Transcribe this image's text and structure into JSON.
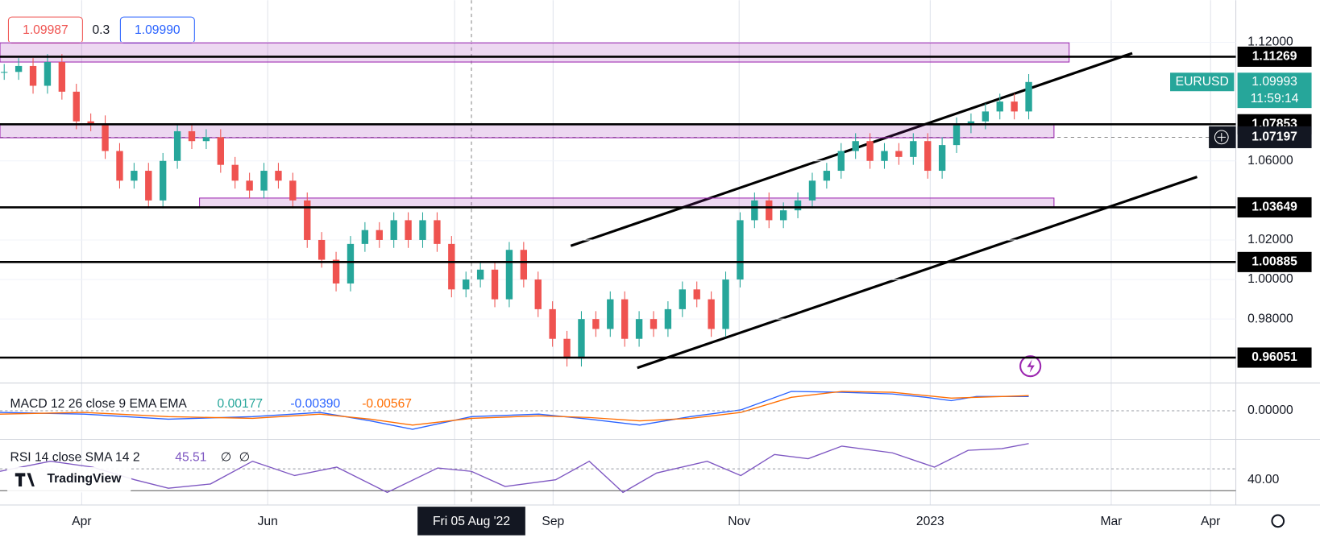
{
  "header": {
    "bid": "1.09987",
    "spread": "0.3",
    "ask": "1.09990"
  },
  "price_axis": {
    "ylim": [
      0.94766,
      1.14128
    ],
    "yticks": [
      {
        "value": 1.12,
        "label": "1.12000"
      },
      {
        "value": 1.06,
        "label": "1.06000"
      },
      {
        "value": 1.02,
        "label": "1.02000"
      },
      {
        "value": 1.0,
        "label": "1.00000"
      },
      {
        "value": 0.98,
        "label": "0.98000"
      }
    ]
  },
  "levels": [
    1.11269,
    1.07853,
    1.03649,
    1.00885,
    0.96051
  ],
  "zones": [
    [
      1.1197,
      1.11
    ],
    [
      1.0785,
      1.0717
    ],
    [
      1.0412,
      1.0365
    ]
  ],
  "symbol": {
    "name": "EURUSD",
    "price": 1.09993,
    "countdown": "11:59:14"
  },
  "crosshair_price": 1.07197,
  "closes": [
    1.105,
    1.108,
    1.098,
    1.11,
    1.095,
    1.08,
    1.079,
    1.065,
    1.05,
    1.055,
    1.04,
    1.06,
    1.075,
    1.07,
    1.072,
    1.058,
    1.05,
    1.045,
    1.055,
    1.05,
    1.04,
    1.02,
    1.01,
    0.998,
    1.018,
    1.025,
    1.02,
    1.03,
    1.02,
    1.03,
    1.018,
    0.995,
    1.0,
    1.005,
    0.99,
    1.015,
    1.0,
    0.985,
    0.97,
    0.96,
    0.98,
    0.975,
    0.99,
    0.97,
    0.98,
    0.975,
    0.985,
    0.995,
    0.99,
    0.975,
    1.0,
    1.03,
    1.04,
    1.03,
    1.035,
    1.04,
    1.05,
    1.055,
    1.065,
    1.07,
    1.06,
    1.065,
    1.062,
    1.07,
    1.055,
    1.068,
    1.078,
    1.08,
    1.085,
    1.09,
    1.085,
    1.0999
  ],
  "macd": {
    "title": "MACD 12 26 close 9 EMA EMA",
    "hist": "0.00177",
    "macd": "-0.00390",
    "signal": "-0.00567",
    "axis": "0.00000"
  },
  "rsi": {
    "title": "RSI 14 close SMA 14 2",
    "value": "45.51",
    "a": "∅",
    "b": "∅",
    "axis": "40.00"
  },
  "logo": "TradingView",
  "time_axis": [
    "Apr",
    "Jun",
    "Fri 05 Aug '22",
    "Sep",
    "Nov",
    "2023",
    "Mar",
    "Apr"
  ]
}
